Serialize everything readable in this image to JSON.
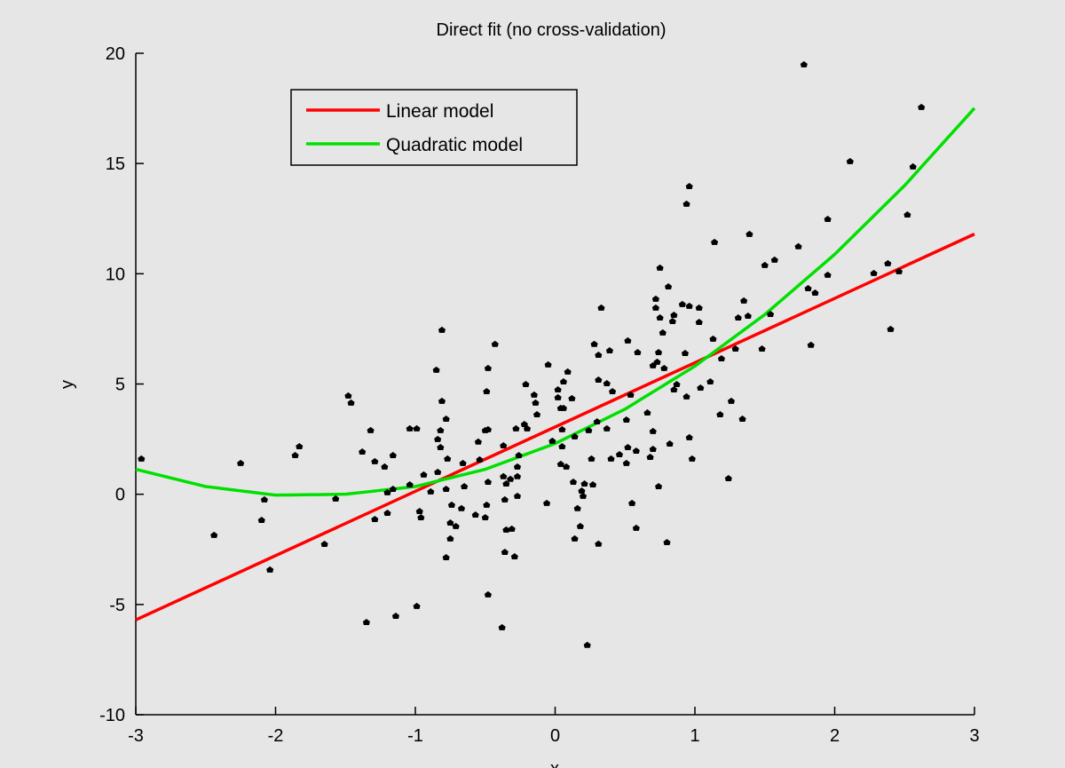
{
  "chart_data": {
    "type": "scatter",
    "title": "Direct fit (no cross-validation)",
    "xlabel": "x",
    "ylabel": "y",
    "xlim": [
      -3,
      3
    ],
    "ylim": [
      -10,
      20
    ],
    "xticks": [
      -3,
      -2,
      -1,
      0,
      1,
      2,
      3
    ],
    "yticks": [
      -10,
      -5,
      0,
      5,
      10,
      15,
      20
    ],
    "grid": false,
    "legend_position": "top-left",
    "legend": [
      {
        "label": "Linear model",
        "color": "#ff0000"
      },
      {
        "label": "Quadratic model",
        "color": "#00e000"
      }
    ],
    "lines": [
      {
        "name": "Linear model",
        "color": "#ff0000",
        "x": [
          -3,
          3
        ],
        "y": [
          -5.7,
          11.8
        ]
      },
      {
        "name": "Quadratic model",
        "color": "#00e000",
        "x": [
          -3,
          -2.5,
          -2,
          -1.5,
          -1,
          -0.5,
          0,
          0.5,
          1,
          1.5,
          2,
          2.5,
          3
        ],
        "y": [
          1.13,
          0.35,
          -0.04,
          0.0,
          0.35,
          1.13,
          2.3,
          3.86,
          5.81,
          8.15,
          10.88,
          14.0,
          17.51
        ]
      }
    ],
    "points_color": "#000000",
    "points": [
      [
        -2.96,
        1.6
      ],
      [
        -2.25,
        1.4
      ],
      [
        -1.86,
        1.76
      ],
      [
        -1.83,
        2.16
      ],
      [
        -1.48,
        4.46
      ],
      [
        -1.46,
        4.14
      ],
      [
        -1.32,
        2.89
      ],
      [
        -1.38,
        1.92
      ],
      [
        -1.29,
        1.48
      ],
      [
        -1.22,
        1.24
      ],
      [
        -1.16,
        1.76
      ],
      [
        -1.04,
        2.97
      ],
      [
        -0.99,
        2.97
      ],
      [
        -0.94,
        0.88
      ],
      [
        -2.08,
        -0.25
      ],
      [
        -2.1,
        -1.18
      ],
      [
        -2.44,
        -1.86
      ],
      [
        -1.57,
        -0.21
      ],
      [
        -1.65,
        -2.27
      ],
      [
        -2.04,
        -3.43
      ],
      [
        -1.29,
        -1.14
      ],
      [
        -1.2,
        -0.86
      ],
      [
        -1.2,
        0.07
      ],
      [
        -1.16,
        0.23
      ],
      [
        -1.04,
        0.43
      ],
      [
        -0.97,
        -0.78
      ],
      [
        -0.96,
        -1.06
      ],
      [
        -1.35,
        -5.81
      ],
      [
        -1.14,
        -5.53
      ],
      [
        -0.99,
        -5.08
      ],
      [
        -0.81,
        7.44
      ],
      [
        -0.43,
        6.8
      ],
      [
        -0.85,
        5.63
      ],
      [
        -0.48,
        5.71
      ],
      [
        -0.49,
        4.66
      ],
      [
        -0.81,
        4.22
      ],
      [
        -0.78,
        3.41
      ],
      [
        -0.82,
        2.89
      ],
      [
        -0.84,
        2.49
      ],
      [
        -0.82,
        2.12
      ],
      [
        -0.77,
        1.6
      ],
      [
        -0.84,
        1.0
      ],
      [
        -0.66,
        1.4
      ],
      [
        -0.54,
        1.56
      ],
      [
        -0.5,
        2.89
      ],
      [
        -0.48,
        2.93
      ],
      [
        -0.55,
        2.37
      ],
      [
        -0.37,
        2.2
      ],
      [
        -0.28,
        2.97
      ],
      [
        -0.22,
        3.17
      ],
      [
        -0.2,
        2.97
      ],
      [
        -0.21,
        4.98
      ],
      [
        -0.05,
        5.87
      ],
      [
        0.09,
        5.55
      ],
      [
        0.06,
        5.1
      ],
      [
        0.02,
        4.74
      ],
      [
        0.02,
        4.38
      ],
      [
        0.12,
        4.34
      ],
      [
        -0.15,
        4.5
      ],
      [
        -0.14,
        4.14
      ],
      [
        -0.13,
        3.61
      ],
      [
        0.04,
        3.9
      ],
      [
        0.06,
        3.9
      ],
      [
        0.28,
        6.8
      ],
      [
        0.31,
        6.31
      ],
      [
        0.39,
        6.51
      ],
      [
        0.52,
        6.96
      ],
      [
        0.31,
        5.18
      ],
      [
        0.37,
        5.02
      ],
      [
        0.41,
        4.66
      ],
      [
        0.54,
        4.5
      ],
      [
        0.37,
        2.97
      ],
      [
        0.51,
        3.37
      ],
      [
        0.3,
        3.29
      ],
      [
        0.05,
        2.93
      ],
      [
        -0.02,
        2.41
      ],
      [
        0.05,
        2.16
      ],
      [
        0.14,
        2.61
      ],
      [
        0.26,
        1.6
      ],
      [
        0.52,
        2.12
      ],
      [
        0.58,
        1.96
      ],
      [
        0.4,
        1.6
      ],
      [
        0.46,
        1.8
      ],
      [
        0.51,
        1.4
      ],
      [
        0.04,
        1.36
      ],
      [
        0.08,
        1.24
      ],
      [
        -0.26,
        1.76
      ],
      [
        -0.27,
        1.24
      ],
      [
        -0.27,
        0.8
      ],
      [
        -0.37,
        0.8
      ],
      [
        -0.35,
        0.47
      ],
      [
        -0.32,
        0.68
      ],
      [
        -0.48,
        0.55
      ],
      [
        -0.65,
        0.35
      ],
      [
        -0.78,
        0.23
      ],
      [
        -0.89,
        0.11
      ],
      [
        -0.74,
        -0.49
      ],
      [
        -0.67,
        -0.65
      ],
      [
        -0.49,
        -0.49
      ],
      [
        -0.57,
        -0.94
      ],
      [
        -0.5,
        -1.06
      ],
      [
        -0.36,
        -0.25
      ],
      [
        -0.27,
        -0.09
      ],
      [
        -0.06,
        -0.41
      ],
      [
        0.13,
        0.55
      ],
      [
        0.19,
        0.15
      ],
      [
        0.21,
        0.47
      ],
      [
        0.27,
        0.43
      ],
      [
        0.2,
        -0.09
      ],
      [
        0.16,
        -0.65
      ],
      [
        0.18,
        -1.46
      ],
      [
        0.14,
        -2.02
      ],
      [
        0.31,
        -2.26
      ],
      [
        0.55,
        -0.41
      ],
      [
        0.58,
        -1.54
      ],
      [
        -0.75,
        -1.3
      ],
      [
        -0.71,
        -1.46
      ],
      [
        -0.75,
        -2.02
      ],
      [
        -0.78,
        -2.87
      ],
      [
        -0.35,
        -1.62
      ],
      [
        -0.31,
        -1.58
      ],
      [
        -0.36,
        -2.63
      ],
      [
        -0.29,
        -2.83
      ],
      [
        -0.48,
        -4.56
      ],
      [
        -0.38,
        -6.05
      ],
      [
        0.23,
        -6.85
      ],
      [
        0.96,
        13.96
      ],
      [
        0.94,
        13.16
      ],
      [
        1.39,
        11.79
      ],
      [
        1.14,
        11.43
      ],
      [
        1.74,
        11.23
      ],
      [
        1.5,
        10.38
      ],
      [
        1.57,
        10.62
      ],
      [
        0.75,
        10.26
      ],
      [
        0.81,
        9.41
      ],
      [
        0.72,
        8.85
      ],
      [
        0.72,
        8.45
      ],
      [
        0.91,
        8.61
      ],
      [
        0.96,
        8.53
      ],
      [
        1.03,
        8.45
      ],
      [
        0.75,
        8.0
      ],
      [
        0.84,
        7.84
      ],
      [
        0.85,
        8.12
      ],
      [
        1.03,
        7.8
      ],
      [
        0.33,
        8.45
      ],
      [
        1.35,
        8.77
      ],
      [
        1.31,
        8.0
      ],
      [
        1.38,
        8.08
      ],
      [
        1.54,
        8.16
      ],
      [
        0.77,
        7.32
      ],
      [
        1.13,
        7.04
      ],
      [
        0.59,
        6.43
      ],
      [
        0.74,
        6.43
      ],
      [
        0.93,
        6.39
      ],
      [
        1.29,
        6.59
      ],
      [
        1.48,
        6.59
      ],
      [
        1.19,
        6.15
      ],
      [
        0.73,
        5.99
      ],
      [
        0.7,
        5.83
      ],
      [
        0.78,
        5.71
      ],
      [
        0.87,
        4.98
      ],
      [
        0.85,
        4.74
      ],
      [
        1.11,
        5.1
      ],
      [
        1.04,
        4.82
      ],
      [
        0.94,
        4.42
      ],
      [
        1.26,
        4.22
      ],
      [
        1.18,
        3.61
      ],
      [
        1.34,
        3.41
      ],
      [
        0.66,
        3.69
      ],
      [
        0.24,
        2.89
      ],
      [
        0.7,
        2.85
      ],
      [
        0.96,
        2.57
      ],
      [
        0.82,
        2.28
      ],
      [
        0.7,
        2.04
      ],
      [
        0.68,
        1.68
      ],
      [
        0.98,
        1.6
      ],
      [
        1.24,
        0.71
      ],
      [
        0.74,
        0.35
      ],
      [
        0.8,
        -2.19
      ],
      [
        1.78,
        19.48
      ],
      [
        2.11,
        15.09
      ],
      [
        2.62,
        17.55
      ],
      [
        2.56,
        14.85
      ],
      [
        2.52,
        12.67
      ],
      [
        1.95,
        12.47
      ],
      [
        2.46,
        10.1
      ],
      [
        2.38,
        10.46
      ],
      [
        2.28,
        10.02
      ],
      [
        1.95,
        9.94
      ],
      [
        1.86,
        9.13
      ],
      [
        1.81,
        9.33
      ],
      [
        2.4,
        7.48
      ],
      [
        1.83,
        6.76
      ]
    ]
  }
}
